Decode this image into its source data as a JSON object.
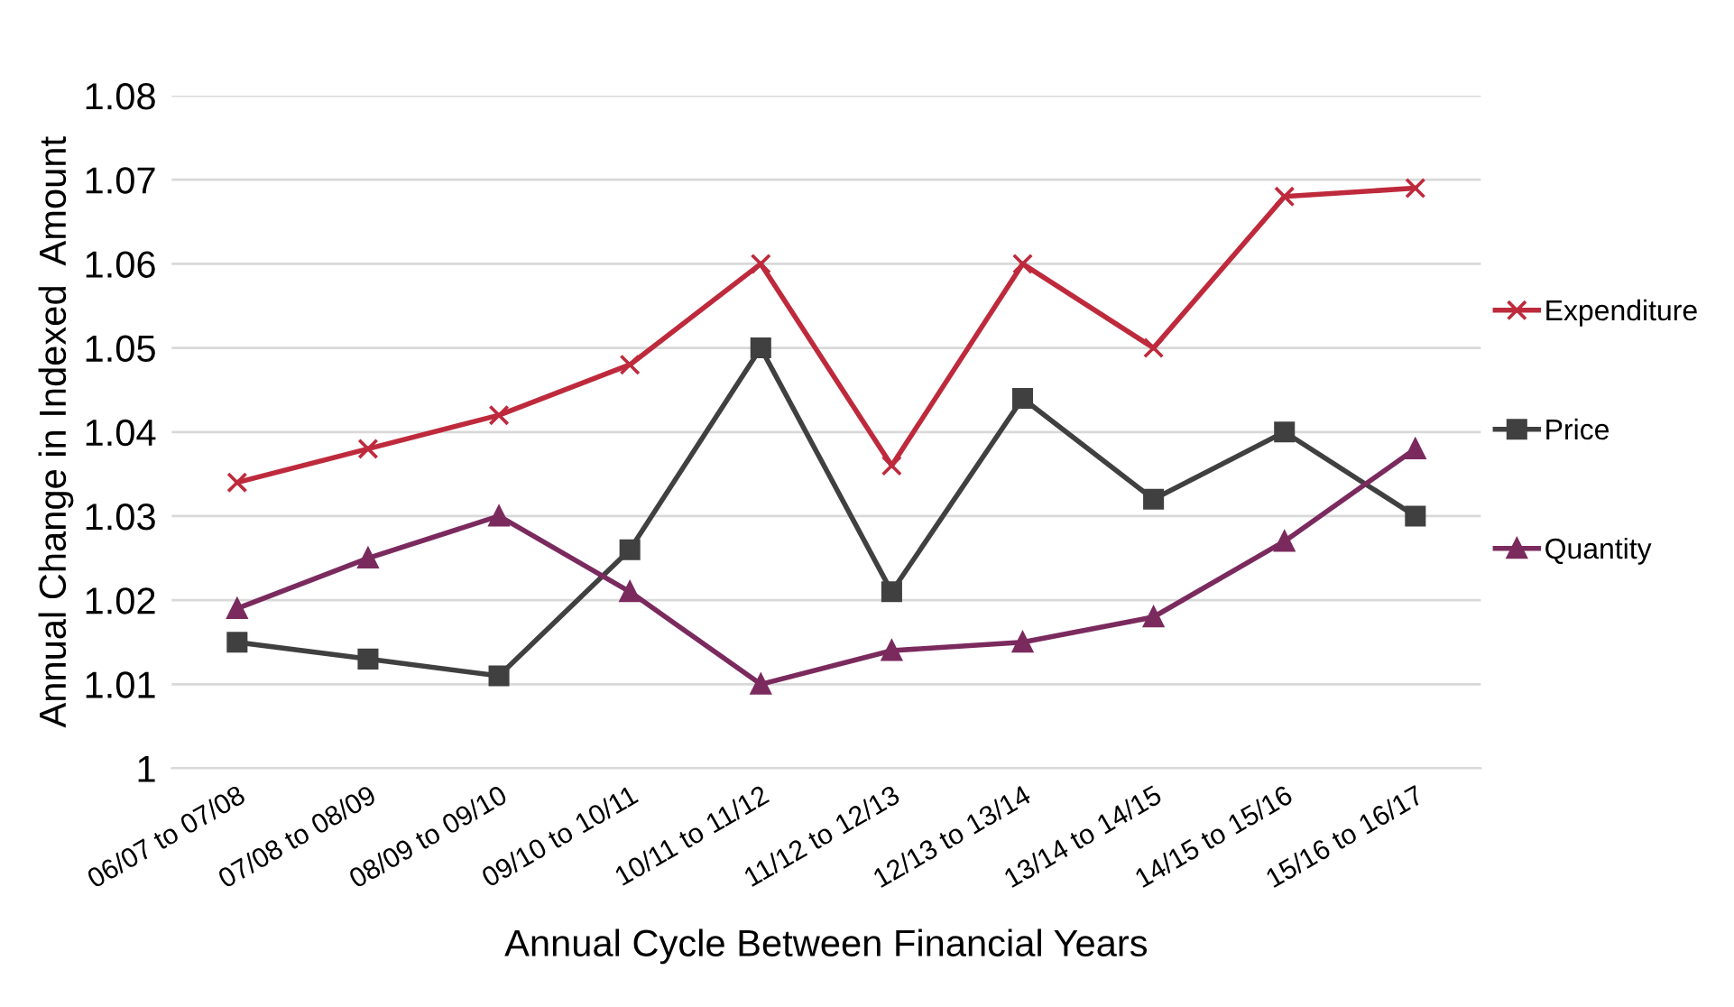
{
  "chart_data": {
    "type": "line",
    "xlabel": "Annual Cycle Between Financial Years",
    "ylabel": "Annual Change in Indexed  Amount",
    "categories": [
      "06/07 to 07/08",
      "07/08 to 08/09",
      "08/09 to 09/10",
      "09/10 to 10/11",
      "10/11 to 11/12",
      "11/12 to 12/13",
      "12/13 to 13/14",
      "13/14 to 14/15",
      "14/15 to 15/16",
      "15/16 to 16/17"
    ],
    "series": [
      {
        "name": "Expenditure",
        "color": "#be2a3c",
        "marker": "cross",
        "values": [
          1.034,
          1.038,
          1.042,
          1.048,
          1.06,
          1.036,
          1.06,
          1.05,
          1.068,
          1.069
        ]
      },
      {
        "name": "Price",
        "color": "#404040",
        "marker": "square",
        "values": [
          1.015,
          1.013,
          1.011,
          1.026,
          1.05,
          1.021,
          1.044,
          1.032,
          1.04,
          1.03
        ]
      },
      {
        "name": "Quantity",
        "color": "#7b2a5e",
        "marker": "triangle",
        "values": [
          1.019,
          1.025,
          1.03,
          1.021,
          1.01,
          1.014,
          1.015,
          1.018,
          1.027,
          1.038
        ]
      }
    ],
    "ylim": [
      1,
      1.08
    ],
    "yticks": [
      {
        "value": 1,
        "label": "1"
      },
      {
        "value": 1.01,
        "label": "1.01"
      },
      {
        "value": 1.02,
        "label": "1.02"
      },
      {
        "value": 1.03,
        "label": "1.03"
      },
      {
        "value": 1.04,
        "label": "1.04"
      },
      {
        "value": 1.05,
        "label": "1.05"
      },
      {
        "value": 1.06,
        "label": "1.06"
      },
      {
        "value": 1.07,
        "label": "1.07"
      },
      {
        "value": 1.08,
        "label": "1.08"
      }
    ],
    "grid": "y",
    "legend": "right",
    "line_style": "solid"
  }
}
